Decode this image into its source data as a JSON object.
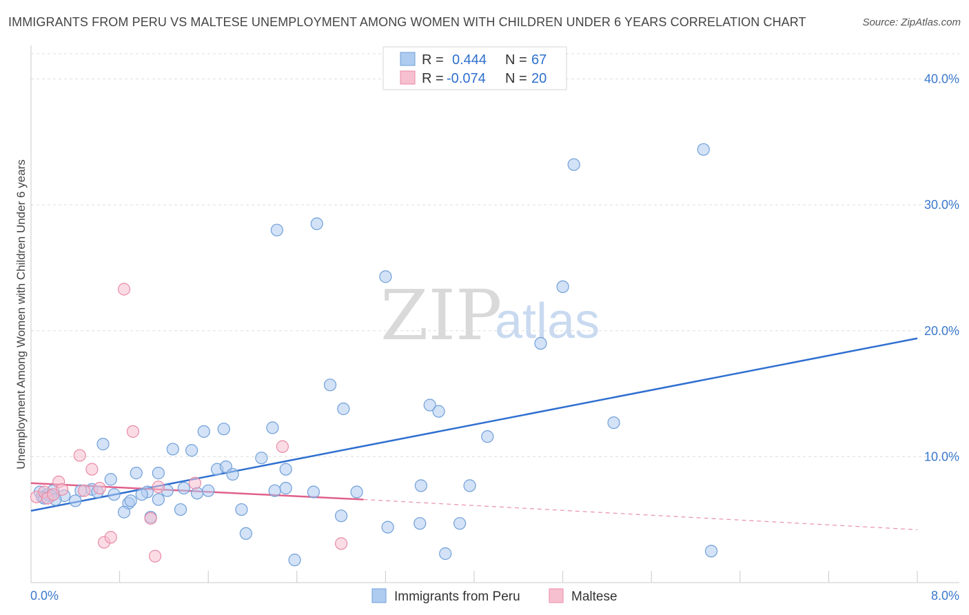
{
  "header": {
    "title": "IMMIGRANTS FROM PERU VS MALTESE UNEMPLOYMENT AMONG WOMEN WITH CHILDREN UNDER 6 YEARS CORRELATION CHART",
    "source": "Source: ZipAtlas.com"
  },
  "watermark": {
    "zip": "ZIP",
    "atlas": "atlas"
  },
  "legend": {
    "rows": [
      {
        "r_label": "R =",
        "r_value": "0.444",
        "n_label": "N =",
        "n_value": "67"
      },
      {
        "r_label": "R =",
        "r_value": "-0.074",
        "n_label": "N =",
        "n_value": "20"
      }
    ]
  },
  "bottom_legend": {
    "items": [
      "Immigrants from Peru",
      "Maltese"
    ]
  },
  "colors": {
    "peru_fill": "#aecbf0",
    "peru_stroke": "#6f9fd8",
    "peru_line": "#2f6fd0",
    "maltese_fill": "#f7c0d0",
    "maltese_stroke": "#e88aa6",
    "maltese_line": "#e0608a",
    "grid": "#dddddd",
    "tick_text": "#3b78cc"
  },
  "chart_data": {
    "type": "scatter",
    "title": "IMMIGRANTS FROM PERU VS MALTESE UNEMPLOYMENT AMONG WOMEN WITH CHILDREN UNDER 6 YEARS CORRELATION CHART",
    "xlabel": "",
    "ylabel": "Unemployment Among Women with Children Under 6 years",
    "xlim": [
      0,
      8
    ],
    "ylim": [
      0,
      42
    ],
    "x_tick_labels": [
      "0.0%",
      "8.0%"
    ],
    "y_ticks": [
      10,
      20,
      30,
      40
    ],
    "y_tick_labels": [
      "10.0%",
      "20.0%",
      "30.0%",
      "40.0%"
    ],
    "grid": true,
    "legend_position": "top-center",
    "series": [
      {
        "name": "Immigrants from Peru",
        "R": 0.444,
        "N": 67,
        "trend": {
          "x": [
            0,
            8
          ],
          "y": [
            5.7,
            19.4
          ]
        },
        "points": [
          [
            0.08,
            7.2
          ],
          [
            0.1,
            6.8
          ],
          [
            0.15,
            7.0
          ],
          [
            0.2,
            7.3
          ],
          [
            0.18,
            6.9
          ],
          [
            0.45,
            7.3
          ],
          [
            0.65,
            11.0
          ],
          [
            0.72,
            8.2
          ],
          [
            0.88,
            6.3
          ],
          [
            0.84,
            5.6
          ],
          [
            0.95,
            8.7
          ],
          [
            0.75,
            7.0
          ],
          [
            1.05,
            7.2
          ],
          [
            1.15,
            6.6
          ],
          [
            1.15,
            8.7
          ],
          [
            1.08,
            5.2
          ],
          [
            1.23,
            7.3
          ],
          [
            1.28,
            10.6
          ],
          [
            1.35,
            5.8
          ],
          [
            1.38,
            7.5
          ],
          [
            1.5,
            7.1
          ],
          [
            1.45,
            10.5
          ],
          [
            1.56,
            12.0
          ],
          [
            1.6,
            7.3
          ],
          [
            1.68,
            9.0
          ],
          [
            1.74,
            12.2
          ],
          [
            1.76,
            9.2
          ],
          [
            1.82,
            8.6
          ],
          [
            1.9,
            5.8
          ],
          [
            1.94,
            3.9
          ],
          [
            2.08,
            9.9
          ],
          [
            2.18,
            12.3
          ],
          [
            2.2,
            7.3
          ],
          [
            2.22,
            28.0
          ],
          [
            2.3,
            7.5
          ],
          [
            2.3,
            9.0
          ],
          [
            2.38,
            1.8
          ],
          [
            2.55,
            7.2
          ],
          [
            2.58,
            28.5
          ],
          [
            2.7,
            15.7
          ],
          [
            2.8,
            5.3
          ],
          [
            2.82,
            13.8
          ],
          [
            2.94,
            7.2
          ],
          [
            3.2,
            24.3
          ],
          [
            3.22,
            4.4
          ],
          [
            3.51,
            4.7
          ],
          [
            3.52,
            7.7
          ],
          [
            3.6,
            14.1
          ],
          [
            3.68,
            13.6
          ],
          [
            3.74,
            2.3
          ],
          [
            3.87,
            4.7
          ],
          [
            3.96,
            7.7
          ],
          [
            4.12,
            11.6
          ],
          [
            4.6,
            19.0
          ],
          [
            4.8,
            23.5
          ],
          [
            4.9,
            33.2
          ],
          [
            5.26,
            12.7
          ],
          [
            6.07,
            34.4
          ],
          [
            6.14,
            2.5
          ],
          [
            0.3,
            6.9
          ],
          [
            0.55,
            7.4
          ],
          [
            0.6,
            7.2
          ],
          [
            0.22,
            6.6
          ],
          [
            0.4,
            6.5
          ],
          [
            0.12,
            6.7
          ],
          [
            0.9,
            6.5
          ],
          [
            1.0,
            7.0
          ]
        ]
      },
      {
        "name": "Maltese",
        "R": -0.074,
        "N": 20,
        "trend": {
          "x": [
            0,
            3.0
          ],
          "y": [
            7.9,
            6.6
          ],
          "dashed_to": [
            8,
            4.2
          ]
        },
        "points": [
          [
            0.05,
            6.8
          ],
          [
            0.12,
            7.2
          ],
          [
            0.15,
            6.7
          ],
          [
            0.25,
            8.0
          ],
          [
            0.28,
            7.4
          ],
          [
            0.44,
            10.1
          ],
          [
            0.48,
            7.3
          ],
          [
            0.55,
            9.0
          ],
          [
            0.62,
            7.5
          ],
          [
            0.66,
            3.2
          ],
          [
            0.72,
            3.6
          ],
          [
            0.84,
            23.3
          ],
          [
            0.92,
            12.0
          ],
          [
            1.08,
            5.1
          ],
          [
            1.12,
            2.1
          ],
          [
            1.15,
            7.6
          ],
          [
            1.48,
            7.9
          ],
          [
            2.27,
            10.8
          ],
          [
            2.8,
            3.1
          ],
          [
            0.2,
            7.0
          ]
        ]
      }
    ]
  }
}
